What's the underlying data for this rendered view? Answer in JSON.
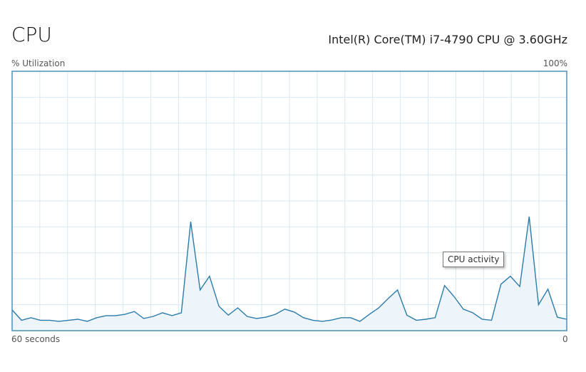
{
  "header": {
    "title": "CPU",
    "processor": "Intel(R) Core(TM) i7-4790 CPU @ 3.60GHz"
  },
  "graph": {
    "y_label": "% Utilization",
    "y_max_label": "100%",
    "x_left_label": "60 seconds",
    "x_right_label": "0",
    "tooltip": "CPU activity"
  },
  "colors": {
    "line": "#2b7bab",
    "fill": "#eef5fa",
    "grid": "#d9e8f1",
    "border": "#4a90b8"
  },
  "chart_data": {
    "type": "area",
    "ylim": [
      0,
      100
    ],
    "xlim": [
      60,
      0
    ],
    "grid": true,
    "values": [
      8,
      4,
      5,
      4,
      4,
      3.6,
      4,
      4.4,
      3.6,
      5,
      5.8,
      5.8,
      6.3,
      7.4,
      4.7,
      5.5,
      6.9,
      5.8,
      6.9,
      42,
      15.7,
      21,
      9.4,
      6,
      8.8,
      5.5,
      4.7,
      5.2,
      6.3,
      8.3,
      7.2,
      5,
      4,
      3.6,
      4.1,
      5,
      5,
      3.6,
      6.3,
      8.8,
      12.4,
      15.7,
      6,
      4,
      4.4,
      5,
      17.4,
      13.2,
      8.3,
      6.9,
      4.4,
      4,
      17.9,
      21,
      17,
      44,
      10,
      16,
      5.2,
      4.4
    ]
  }
}
